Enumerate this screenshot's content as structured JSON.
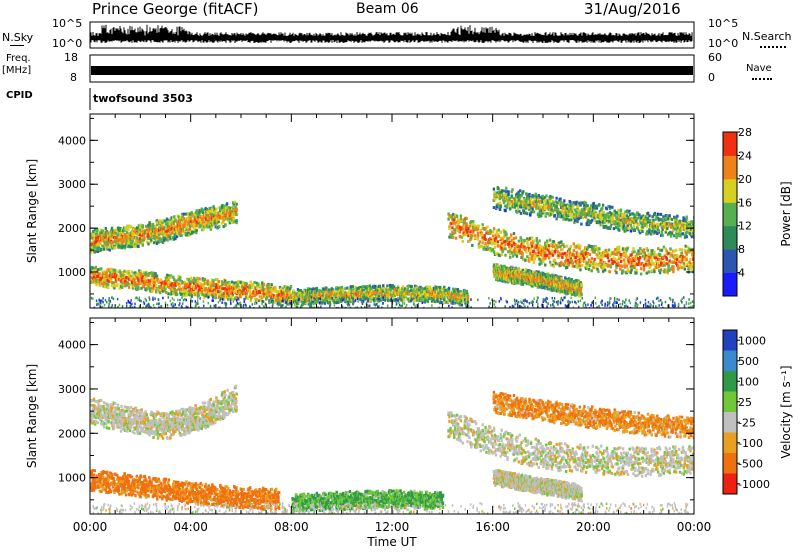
{
  "header": {
    "station": "Prince George (fitACF)",
    "beam": "Beam 06",
    "date": "31/Aug/2016"
  },
  "summary": {
    "left_label_nsky": "N.Sky",
    "left_label_freq": "Freq.",
    "left_label_freq_unit": "[MHz]",
    "left_label_cpid": "CPID",
    "right_label_nsearch": "N.Search",
    "right_label_nave": "Nave",
    "nsky_ticks": [
      "10^5",
      "10^0"
    ],
    "nsearch_ticks": [
      "10^5",
      "10^0"
    ],
    "freq_ticks": [
      "18",
      "8"
    ],
    "nave_ticks": [
      "60",
      "0"
    ],
    "cpid_text": "twofsound 3503"
  },
  "chart_data": [
    {
      "type": "heatmap",
      "name_key": "power",
      "ylabel": "Slant Range [km]",
      "x_ticks": [
        "00:00",
        "04:00",
        "08:00",
        "12:00",
        "16:00",
        "20:00",
        "00:00"
      ],
      "x_range": [
        0,
        24
      ],
      "y_ticks": [
        "1000",
        "2000",
        "3000",
        "4000"
      ],
      "y_range": [
        180,
        4600
      ],
      "colorbar_label": "Power [dB]",
      "colorbar_ticks": [
        "4",
        "8",
        "12",
        "16",
        "20",
        "24",
        "28"
      ],
      "colorbar_colors": [
        "#1a1aff",
        "#2d55b4",
        "#2e8b57",
        "#56b050",
        "#d8d020",
        "#f08018",
        "#f03010"
      ],
      "bands": [
        {
          "t": [
            0,
            1.5,
            3,
            4.5,
            5.8
          ],
          "r": [
            1700,
            1800,
            1950,
            2200,
            2350
          ],
          "w": 260,
          "v": 20
        },
        {
          "t": [
            0,
            2,
            4,
            6.5,
            8
          ],
          "r": [
            900,
            800,
            650,
            550,
            450
          ],
          "w": 220,
          "v": 22
        },
        {
          "t": [
            8,
            10,
            12,
            14,
            15
          ],
          "r": [
            420,
            480,
            520,
            480,
            400
          ],
          "w": 180,
          "v": 18
        },
        {
          "t": [
            14.2,
            16,
            18,
            20,
            22,
            24
          ],
          "r": [
            2100,
            1700,
            1450,
            1300,
            1250,
            1300
          ],
          "w": 300,
          "v": 22
        },
        {
          "t": [
            16,
            18,
            20,
            22,
            24
          ],
          "r": [
            2700,
            2500,
            2300,
            2100,
            2000
          ],
          "w": 260,
          "v": 16
        },
        {
          "t": [
            16,
            18,
            19.5
          ],
          "r": [
            1000,
            800,
            600
          ],
          "w": 180,
          "v": 19
        }
      ]
    },
    {
      "type": "heatmap",
      "name_key": "velocity",
      "xlabel": "Time UT",
      "ylabel": "Slant Range [km]",
      "x_ticks": [
        "00:00",
        "04:00",
        "08:00",
        "12:00",
        "16:00",
        "20:00",
        "00:00"
      ],
      "x_range": [
        0,
        24
      ],
      "y_ticks": [
        "1000",
        "2000",
        "3000",
        "4000"
      ],
      "y_range": [
        180,
        4600
      ],
      "colorbar_label": "Velocity [m s⁻¹]",
      "colorbar_ticks": [
        "1000",
        "500",
        "100",
        "25",
        "-25",
        "-100",
        "-500",
        "-1000"
      ],
      "colorbar_colors": [
        "#2040c0",
        "#3a8ad0",
        "#2e9a48",
        "#70c838",
        "#c0c0c0",
        "#e8a020",
        "#f07010",
        "#f02010"
      ],
      "bands": [
        {
          "t": [
            0,
            1.5,
            3,
            4.5,
            5.8
          ],
          "r": [
            2500,
            2300,
            2150,
            2400,
            2800
          ],
          "w": 300,
          "v": 0
        },
        {
          "t": [
            0,
            2,
            4,
            6,
            7.5
          ],
          "r": [
            950,
            800,
            650,
            550,
            500
          ],
          "w": 240,
          "v": -80
        },
        {
          "t": [
            8,
            10,
            12,
            14
          ],
          "r": [
            420,
            480,
            520,
            470
          ],
          "w": 200,
          "v": 60
        },
        {
          "t": [
            14.2,
            16,
            18,
            20,
            22,
            24
          ],
          "r": [
            2200,
            1800,
            1500,
            1400,
            1350,
            1400
          ],
          "w": 320,
          "v": 0
        },
        {
          "t": [
            16,
            18,
            20,
            22,
            24
          ],
          "r": [
            2700,
            2500,
            2350,
            2200,
            2100
          ],
          "w": 240,
          "v": -60
        },
        {
          "t": [
            16,
            18,
            19.5
          ],
          "r": [
            1000,
            800,
            650
          ],
          "w": 180,
          "v": 0
        }
      ]
    }
  ]
}
